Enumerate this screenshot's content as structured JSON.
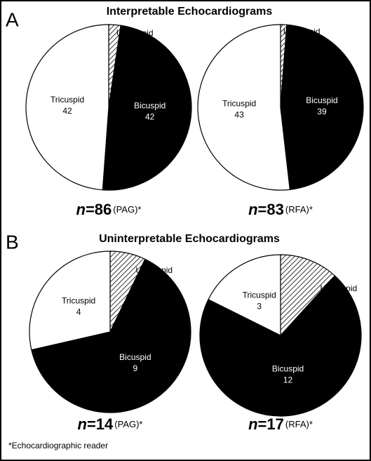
{
  "panels": [
    {
      "letter": "A",
      "title": "Interpretable Echocardiograms"
    },
    {
      "letter": "B",
      "title": "Uninterpretable Echocardiograms"
    }
  ],
  "footnote": "*Echocardiographic reader",
  "chart_data": [
    {
      "type": "pie",
      "panel": 0,
      "categories": [
        "Unicuspid",
        "Bicuspid",
        "Tricuspid"
      ],
      "values": [
        2,
        42,
        42
      ],
      "colors": [
        "#ffffff",
        "#000000",
        "#ffffff"
      ],
      "hatch": [
        true,
        false,
        false
      ],
      "caption": {
        "symbol": "n",
        "sign": "=",
        "n": 86,
        "group": "(PAG)*"
      }
    },
    {
      "type": "pie",
      "panel": 0,
      "categories": [
        "Unicuspid",
        "Bicuspid",
        "Tricuspid"
      ],
      "values": [
        1,
        39,
        43
      ],
      "colors": [
        "#ffffff",
        "#000000",
        "#ffffff"
      ],
      "hatch": [
        true,
        false,
        false
      ],
      "caption": {
        "symbol": "n",
        "sign": "=",
        "n": 83,
        "group": "(RFA)*"
      }
    },
    {
      "type": "pie",
      "panel": 1,
      "categories": [
        "Unicuspid",
        "Bicuspid",
        "Tricuspid"
      ],
      "values": [
        1,
        9,
        4
      ],
      "colors": [
        "#ffffff",
        "#000000",
        "#ffffff"
      ],
      "hatch": [
        true,
        false,
        false
      ],
      "caption": {
        "symbol": "n",
        "sign": "=",
        "n": 14,
        "group": "(PAG)*"
      }
    },
    {
      "type": "pie",
      "panel": 1,
      "categories": [
        "Unicuspid",
        "Bicuspid",
        "Tricuspid"
      ],
      "values": [
        2,
        12,
        3
      ],
      "colors": [
        "#ffffff",
        "#000000",
        "#ffffff"
      ],
      "hatch": [
        true,
        false,
        false
      ],
      "caption": {
        "symbol": "n",
        "sign": "=",
        "n": 17,
        "group": "(RFA)*"
      }
    }
  ]
}
